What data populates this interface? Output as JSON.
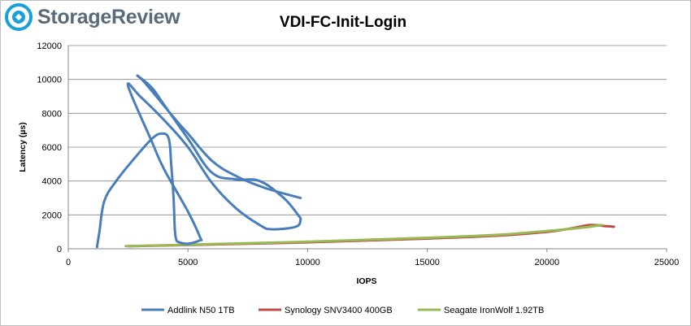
{
  "brand": {
    "name": "StorageReview",
    "logo_icon": "storagereview-logo-icon",
    "accent": "#1aa0d8"
  },
  "chart_data": {
    "type": "line",
    "title": "VDI-FC-Init-Login",
    "xlabel": "IOPS",
    "ylabel": "Latency (µs)",
    "xlim": [
      0,
      25000
    ],
    "ylim": [
      0,
      12000
    ],
    "xticks": [
      0,
      5000,
      10000,
      15000,
      20000,
      25000
    ],
    "yticks": [
      0,
      2000,
      4000,
      6000,
      8000,
      10000,
      12000
    ],
    "grid": "horizontal",
    "legend_position": "bottom",
    "series": [
      {
        "name": "Addlink N50 1TB",
        "color": "#4a7ebb",
        "x": [
          1200,
          1300,
          1500,
          2000,
          2800,
          3500,
          3900,
          4200,
          4300,
          4400,
          4450,
          4500,
          4600,
          5000,
          5500,
          5500,
          5000,
          4000,
          3500,
          2500,
          3000,
          4000,
          5000,
          6000,
          7000,
          8000,
          8500,
          9500,
          9700,
          9600,
          9000,
          8000,
          7000,
          6000,
          5000,
          4000,
          3500,
          2900,
          3200,
          4500,
          5000,
          6000,
          7000,
          8200,
          9700
        ],
        "y": [
          100,
          1000,
          2800,
          4000,
          5400,
          6500,
          6800,
          6500,
          5000,
          3000,
          1200,
          600,
          400,
          300,
          500,
          700,
          2200,
          4700,
          6300,
          9600,
          9000,
          7600,
          6000,
          3900,
          2400,
          1400,
          1150,
          1300,
          1700,
          2000,
          3000,
          4000,
          4100,
          4500,
          6500,
          8500,
          9500,
          10200,
          9800,
          7600,
          6800,
          5200,
          4300,
          3600,
          3000
        ]
      },
      {
        "name": "Synology SNV3400 400GB",
        "color": "#be4b48",
        "x": [
          2500,
          5000,
          10000,
          15000,
          18000,
          20000,
          21000,
          21800,
          22500,
          22800
        ],
        "y": [
          150,
          220,
          380,
          600,
          780,
          1000,
          1200,
          1400,
          1330,
          1300
        ]
      },
      {
        "name": "Seagate IronWolf 1.92TB",
        "color": "#98b954",
        "x": [
          2400,
          5000,
          10000,
          15000,
          18000,
          20000,
          21500,
          22300
        ],
        "y": [
          160,
          240,
          420,
          650,
          830,
          1050,
          1250,
          1400
        ]
      }
    ]
  }
}
